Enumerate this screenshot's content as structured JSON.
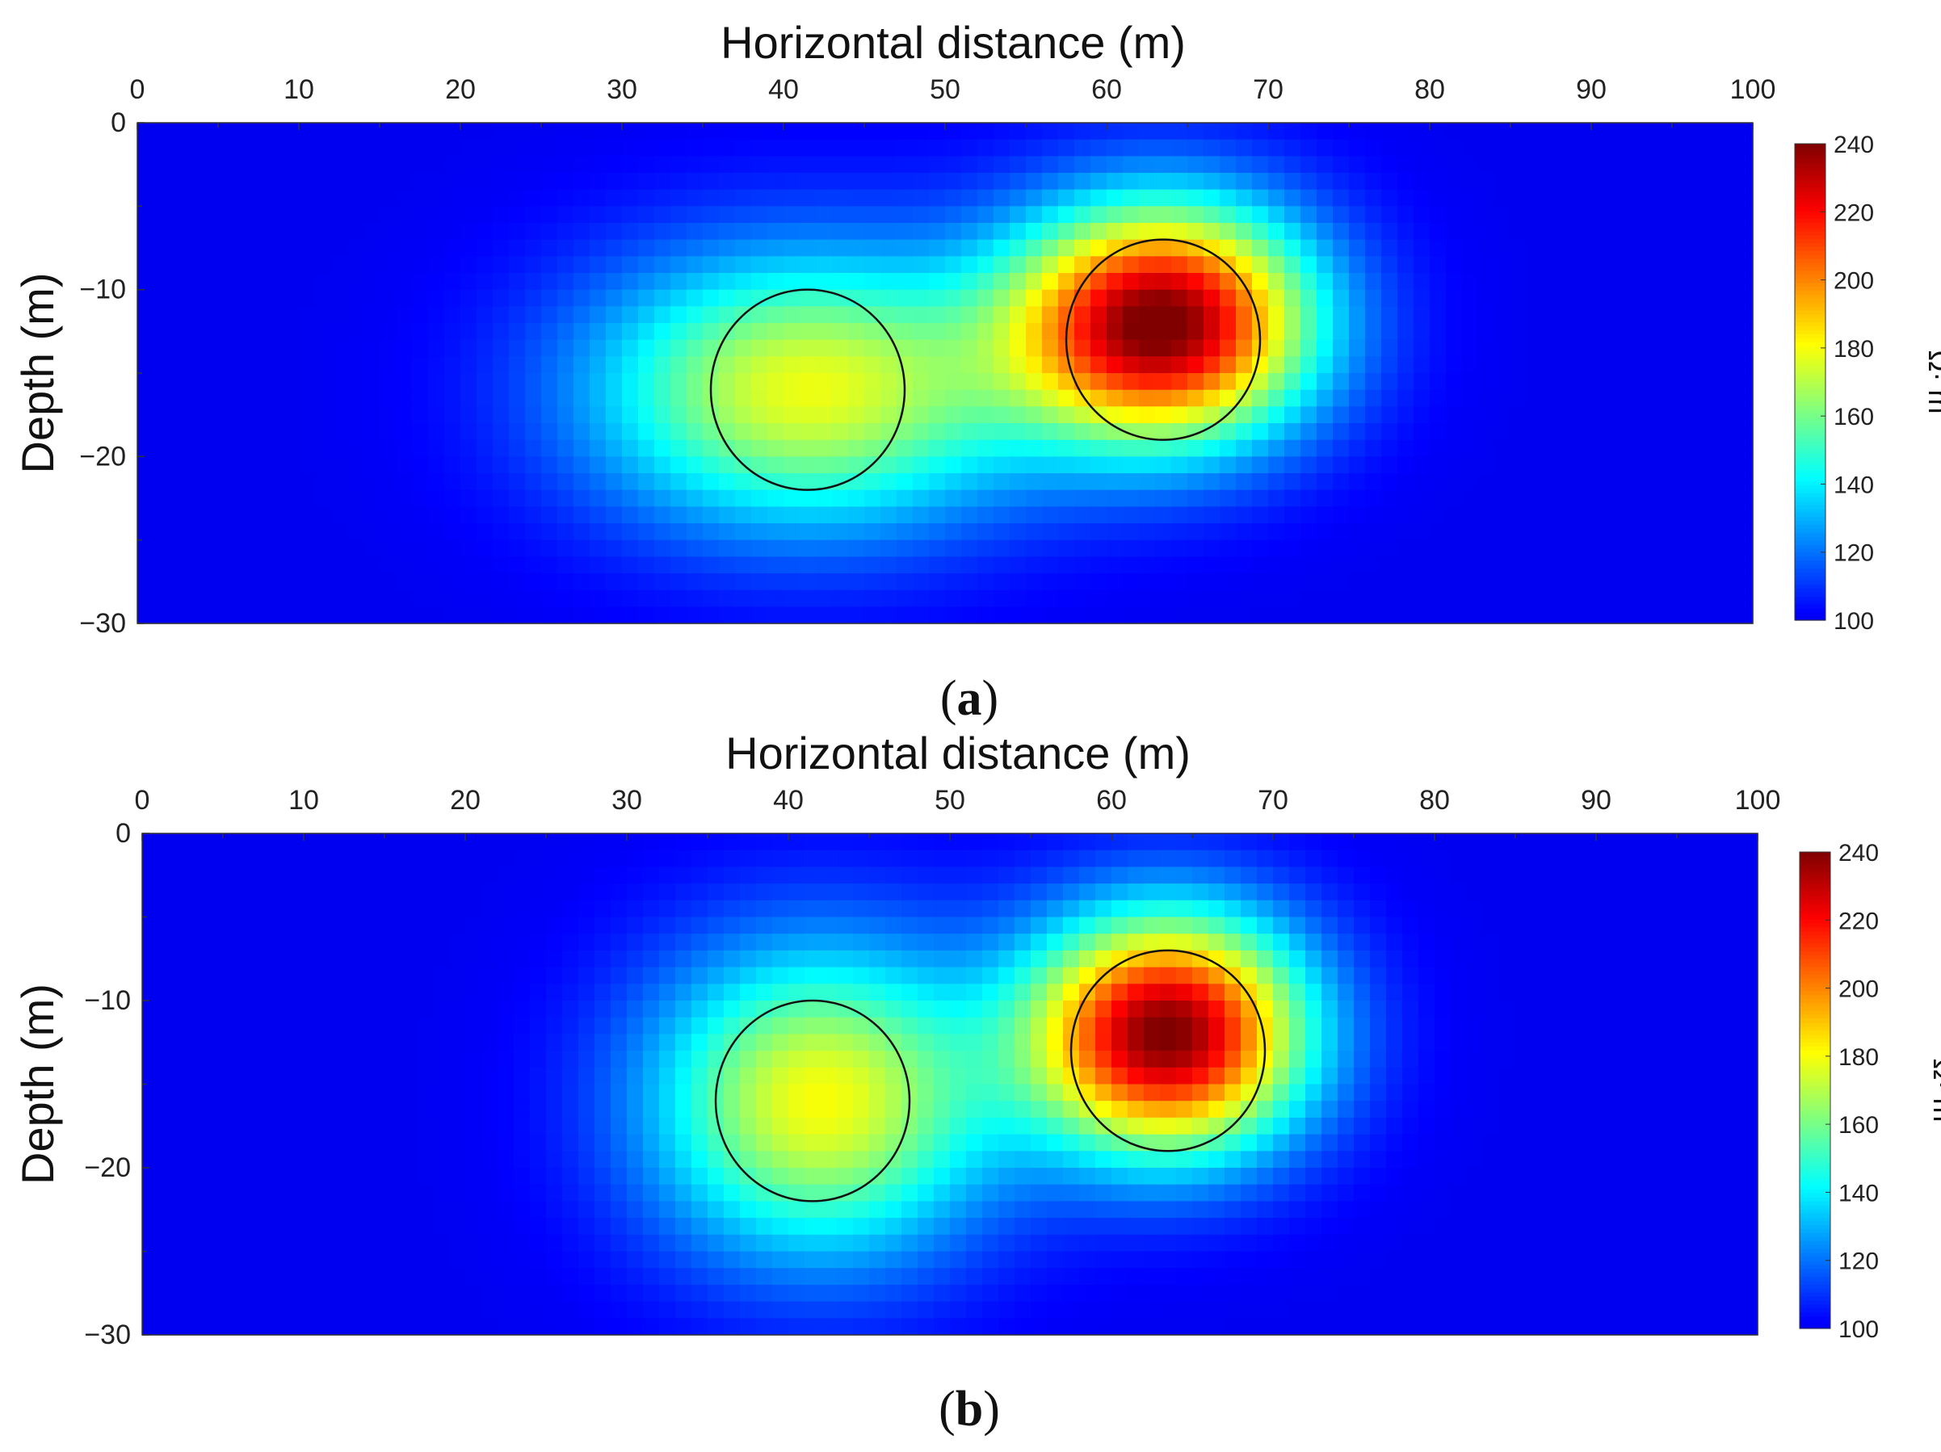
{
  "chart_data": [
    {
      "type": "heatmap",
      "panel_label": "(a)",
      "xlabel": "Horizontal distance (m)",
      "ylabel": "Depth (m)",
      "xlim": [
        0,
        100
      ],
      "ylim": [
        -30,
        0
      ],
      "x_ticks": [
        "0",
        "10",
        "20",
        "30",
        "40",
        "50",
        "60",
        "70",
        "80",
        "90",
        "100"
      ],
      "y_ticks": [
        "0",
        "−10",
        "−20",
        "−30"
      ],
      "colorbar": {
        "label": "Ω· m",
        "range": [
          100,
          240
        ],
        "ticks": [
          "100",
          "120",
          "140",
          "160",
          "180",
          "200",
          "220",
          "240"
        ],
        "colormap": "jet"
      },
      "anomalies": [
        {
          "x": 41.5,
          "z": -16,
          "radius": 6,
          "peak": 178,
          "spread_x": 9.5,
          "spread_z": 5.8
        },
        {
          "x": 63.5,
          "z": -12,
          "radius": 6,
          "peak": 240,
          "spread_x": 6.5,
          "spread_z": 5.0
        }
      ],
      "outlined_bodies": [
        {
          "x": 41.5,
          "z": -16,
          "radius": 6
        },
        {
          "x": 63.5,
          "z": -13,
          "radius": 6
        }
      ]
    },
    {
      "type": "heatmap",
      "panel_label": "(b)",
      "xlabel": "Horizontal distance (m)",
      "ylabel": "Depth (m)",
      "xlim": [
        0,
        100
      ],
      "ylim": [
        -30,
        0
      ],
      "x_ticks": [
        "0",
        "10",
        "20",
        "30",
        "40",
        "50",
        "60",
        "70",
        "80",
        "90",
        "100"
      ],
      "y_ticks": [
        "0",
        "−10",
        "−20",
        "−30"
      ],
      "colorbar": {
        "label": "Ω· m",
        "range": [
          100,
          240
        ],
        "ticks": [
          "100",
          "120",
          "140",
          "160",
          "180",
          "200",
          "220",
          "240"
        ],
        "colormap": "jet"
      },
      "anomalies": [
        {
          "x": 42,
          "z": -16,
          "radius": 6,
          "peak": 180,
          "spread_x": 7.5,
          "spread_z": 6.5
        },
        {
          "x": 63.5,
          "z": -12,
          "radius": 6,
          "peak": 240,
          "spread_x": 6.0,
          "spread_z": 5.0
        }
      ],
      "outlined_bodies": [
        {
          "x": 41.5,
          "z": -16,
          "radius": 6
        },
        {
          "x": 63.5,
          "z": -13,
          "radius": 6
        }
      ]
    }
  ]
}
